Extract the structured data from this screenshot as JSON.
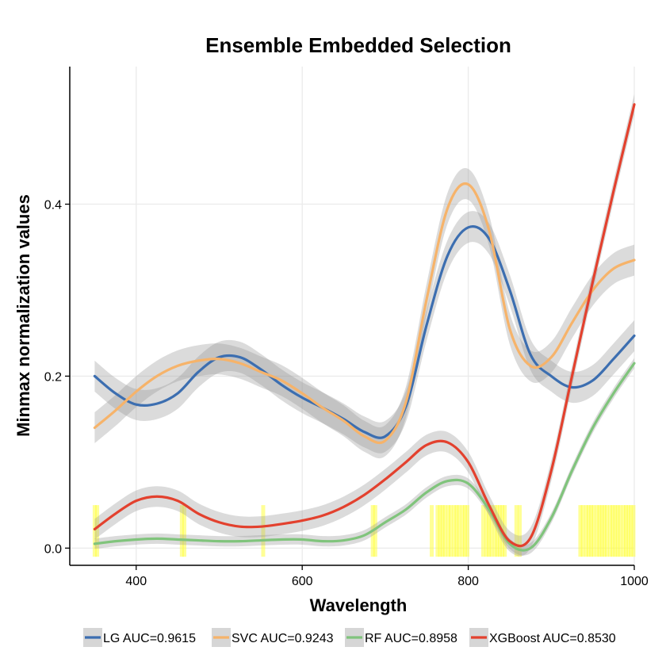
{
  "chart_data": {
    "type": "line",
    "title": "Ensemble Embedded Selection",
    "xlabel": "Wavelength",
    "ylabel": "Minmax normalization values",
    "xlim": [
      320,
      1000
    ],
    "ylim": [
      -0.02,
      0.56
    ],
    "x_ticks": [
      400,
      600,
      800,
      1000
    ],
    "x_tick_labels": [
      "400",
      "600",
      "800",
      "1000"
    ],
    "y_ticks": [
      0.0,
      0.2,
      0.4
    ],
    "y_tick_labels": [
      "0.0",
      "0.2",
      "0.4"
    ],
    "grid": true,
    "legend_position": "bottom",
    "series": [
      {
        "name": "LG AUC=0.9615",
        "color": "#3c6eb0",
        "band": 0.018,
        "x": [
          350,
          375,
          400,
          425,
          450,
          475,
          500,
          525,
          550,
          575,
          600,
          625,
          650,
          675,
          700,
          725,
          750,
          775,
          800,
          825,
          850,
          875,
          900,
          925,
          950,
          975,
          1000
        ],
        "y": [
          0.2,
          0.18,
          0.167,
          0.168,
          0.18,
          0.205,
          0.222,
          0.222,
          0.208,
          0.19,
          0.175,
          0.163,
          0.15,
          0.135,
          0.13,
          0.165,
          0.26,
          0.34,
          0.373,
          0.36,
          0.3,
          0.225,
          0.2,
          0.187,
          0.195,
          0.22,
          0.247
        ]
      },
      {
        "name": "SVC AUC=0.9243",
        "color": "#f6b36a",
        "band": 0.018,
        "x": [
          350,
          375,
          400,
          425,
          450,
          475,
          500,
          525,
          550,
          575,
          600,
          625,
          650,
          675,
          700,
          725,
          750,
          775,
          800,
          825,
          850,
          875,
          900,
          925,
          950,
          975,
          1000
        ],
        "y": [
          0.14,
          0.16,
          0.182,
          0.2,
          0.212,
          0.218,
          0.22,
          0.215,
          0.205,
          0.195,
          0.18,
          0.163,
          0.148,
          0.13,
          0.125,
          0.17,
          0.29,
          0.395,
          0.423,
          0.37,
          0.255,
          0.212,
          0.222,
          0.262,
          0.3,
          0.325,
          0.335
        ]
      },
      {
        "name": "RF AUC=0.8958",
        "color": "#80c47c",
        "band": 0.006,
        "x": [
          350,
          375,
          400,
          425,
          450,
          475,
          500,
          525,
          550,
          575,
          600,
          625,
          650,
          675,
          700,
          725,
          750,
          775,
          800,
          825,
          850,
          875,
          900,
          925,
          950,
          975,
          1000
        ],
        "y": [
          0.005,
          0.008,
          0.01,
          0.011,
          0.01,
          0.009,
          0.008,
          0.008,
          0.009,
          0.01,
          0.01,
          0.008,
          0.009,
          0.015,
          0.03,
          0.045,
          0.065,
          0.078,
          0.075,
          0.045,
          0.005,
          0.0,
          0.035,
          0.09,
          0.14,
          0.18,
          0.215
        ]
      },
      {
        "name": "XGBoost AUC=0.8530",
        "color": "#e3412e",
        "band": 0.012,
        "x": [
          350,
          375,
          400,
          425,
          450,
          475,
          500,
          525,
          550,
          575,
          600,
          625,
          650,
          675,
          700,
          725,
          750,
          775,
          800,
          825,
          850,
          875,
          900,
          925,
          950,
          975,
          1000
        ],
        "y": [
          0.022,
          0.04,
          0.055,
          0.06,
          0.055,
          0.04,
          0.03,
          0.025,
          0.025,
          0.028,
          0.032,
          0.038,
          0.048,
          0.062,
          0.08,
          0.1,
          0.12,
          0.123,
          0.1,
          0.05,
          0.008,
          0.012,
          0.09,
          0.2,
          0.31,
          0.415,
          0.516
        ]
      }
    ],
    "selected_wavelengths": [
      350,
      353,
      455,
      458,
      553,
      685,
      688,
      756,
      763,
      766,
      769,
      772,
      776,
      779,
      783,
      786,
      789,
      793,
      796,
      799,
      818,
      822,
      825,
      828,
      832,
      835,
      838,
      841,
      844,
      858,
      862,
      935,
      938,
      942,
      945,
      948,
      951,
      955,
      958,
      961,
      964,
      967,
      971,
      974,
      977,
      980,
      983,
      987,
      990,
      993,
      996,
      999
    ],
    "selected_marker_top": 0.05,
    "selected_marker_color": "#ffff40"
  }
}
